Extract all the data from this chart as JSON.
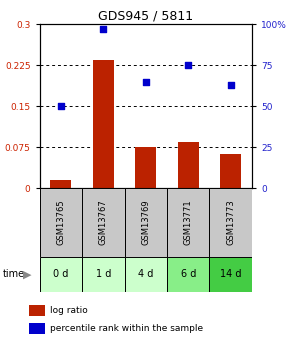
{
  "title": "GDS945 / 5811",
  "samples": [
    "GSM13765",
    "GSM13767",
    "GSM13769",
    "GSM13771",
    "GSM13773"
  ],
  "time_labels": [
    "0 d",
    "1 d",
    "4 d",
    "6 d",
    "14 d"
  ],
  "log_ratio": [
    0.015,
    0.235,
    0.075,
    0.085,
    0.063
  ],
  "percentile": [
    50,
    97,
    65,
    75,
    63
  ],
  "bar_color": "#bb2200",
  "scatter_color": "#0000cc",
  "left_yticks": [
    0,
    0.075,
    0.15,
    0.225,
    0.3
  ],
  "right_yticks": [
    0,
    25,
    50,
    75,
    100
  ],
  "left_ylim": [
    0,
    0.3
  ],
  "right_ylim": [
    0,
    100
  ],
  "left_ycolor": "#cc2200",
  "right_ycolor": "#2222cc",
  "time_colors": [
    "#ccffcc",
    "#ccffcc",
    "#ccffcc",
    "#88ee88",
    "#44cc44"
  ],
  "gsm_bg_color": "#c8c8c8",
  "bar_width": 0.5,
  "title_fontsize": 9,
  "tick_fontsize": 6.5,
  "gsm_fontsize": 6,
  "time_fontsize": 7,
  "legend_fontsize": 6.5
}
